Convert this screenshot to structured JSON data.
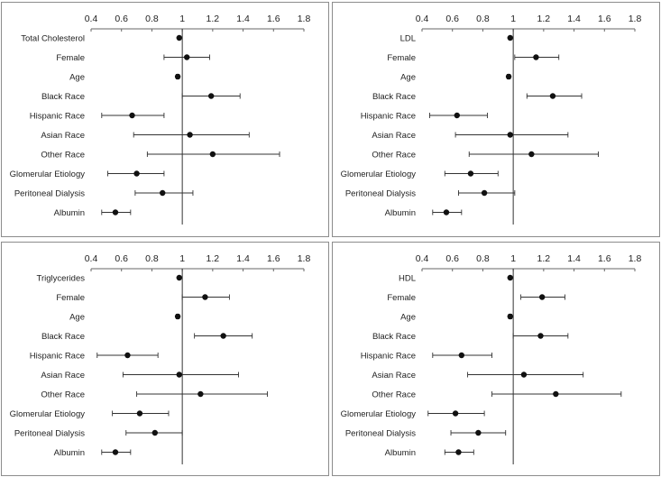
{
  "chart_data": [
    {
      "type": "scatter",
      "subtype": "forest-plot",
      "x_ticks": [
        0.4,
        0.6,
        0.8,
        1,
        1.2,
        1.4,
        1.6,
        1.8
      ],
      "xlim": [
        0.4,
        1.8
      ],
      "reference_line": 1,
      "grid": false,
      "legend": "none",
      "categories": [
        "Total Cholesterol",
        "Female",
        "Age",
        "Black Race",
        "Hispanic Race",
        "Asian Race",
        "Other Race",
        "Glomerular Etiology",
        "Peritoneal Dialysis",
        "Albumin"
      ],
      "estimate": [
        0.98,
        1.03,
        0.97,
        1.19,
        0.67,
        1.05,
        1.2,
        0.7,
        0.87,
        0.56
      ],
      "ci_low": [
        0.98,
        0.88,
        0.96,
        1.0,
        0.47,
        0.68,
        0.77,
        0.51,
        0.69,
        0.47
      ],
      "ci_high": [
        0.99,
        1.18,
        0.98,
        1.38,
        0.88,
        1.44,
        1.64,
        0.88,
        1.07,
        0.66
      ]
    },
    {
      "type": "scatter",
      "subtype": "forest-plot",
      "x_ticks": [
        0.4,
        0.6,
        0.8,
        1,
        1.2,
        1.4,
        1.6,
        1.8
      ],
      "xlim": [
        0.4,
        1.8
      ],
      "reference_line": 1,
      "grid": false,
      "legend": "none",
      "categories": [
        "LDL",
        "Female",
        "Age",
        "Black Race",
        "Hispanic Race",
        "Asian Race",
        "Other Race",
        "Glomerular Etiology",
        "Peritoneal Dialysis",
        "Albumin"
      ],
      "estimate": [
        0.98,
        1.15,
        0.97,
        1.26,
        0.63,
        0.98,
        1.12,
        0.72,
        0.81,
        0.56
      ],
      "ci_low": [
        0.98,
        1.01,
        0.96,
        1.09,
        0.45,
        0.62,
        0.71,
        0.55,
        0.64,
        0.47
      ],
      "ci_high": [
        0.99,
        1.3,
        0.98,
        1.45,
        0.83,
        1.36,
        1.56,
        0.9,
        1.01,
        0.66
      ]
    },
    {
      "type": "scatter",
      "subtype": "forest-plot",
      "x_ticks": [
        0.4,
        0.6,
        0.8,
        1,
        1.2,
        1.4,
        1.6,
        1.8
      ],
      "xlim": [
        0.4,
        1.8
      ],
      "reference_line": 1,
      "grid": false,
      "legend": "none",
      "categories": [
        "Triglycerides",
        "Female",
        "Age",
        "Black Race",
        "Hispanic Race",
        "Asian Race",
        "Other Race",
        "Glomerular Etiology",
        "Peritoneal Dialysis",
        "Albumin"
      ],
      "estimate": [
        0.98,
        1.15,
        0.97,
        1.27,
        0.64,
        0.98,
        1.12,
        0.72,
        0.82,
        0.56
      ],
      "ci_low": [
        0.98,
        1.0,
        0.96,
        1.08,
        0.44,
        0.61,
        0.7,
        0.54,
        0.63,
        0.47
      ],
      "ci_high": [
        0.99,
        1.31,
        0.98,
        1.46,
        0.84,
        1.37,
        1.56,
        0.91,
        1.0,
        0.66
      ]
    },
    {
      "type": "scatter",
      "subtype": "forest-plot",
      "x_ticks": [
        0.4,
        0.6,
        0.8,
        1,
        1.2,
        1.4,
        1.6,
        1.8
      ],
      "xlim": [
        0.4,
        1.8
      ],
      "reference_line": 1,
      "grid": false,
      "legend": "none",
      "categories": [
        "HDL",
        "Female",
        "Age",
        "Black Race",
        "Hispanic Race",
        "Asian Race",
        "Other Race",
        "Glomerular Etiology",
        "Peritoneal Dialysis",
        "Albumin"
      ],
      "estimate": [
        0.98,
        1.19,
        0.98,
        1.18,
        0.66,
        1.07,
        1.28,
        0.62,
        0.77,
        0.64
      ],
      "ci_low": [
        0.98,
        1.05,
        0.97,
        1.0,
        0.47,
        0.7,
        0.86,
        0.44,
        0.59,
        0.55
      ],
      "ci_high": [
        0.99,
        1.34,
        0.99,
        1.36,
        0.86,
        1.46,
        1.71,
        0.81,
        0.95,
        0.74
      ]
    }
  ]
}
